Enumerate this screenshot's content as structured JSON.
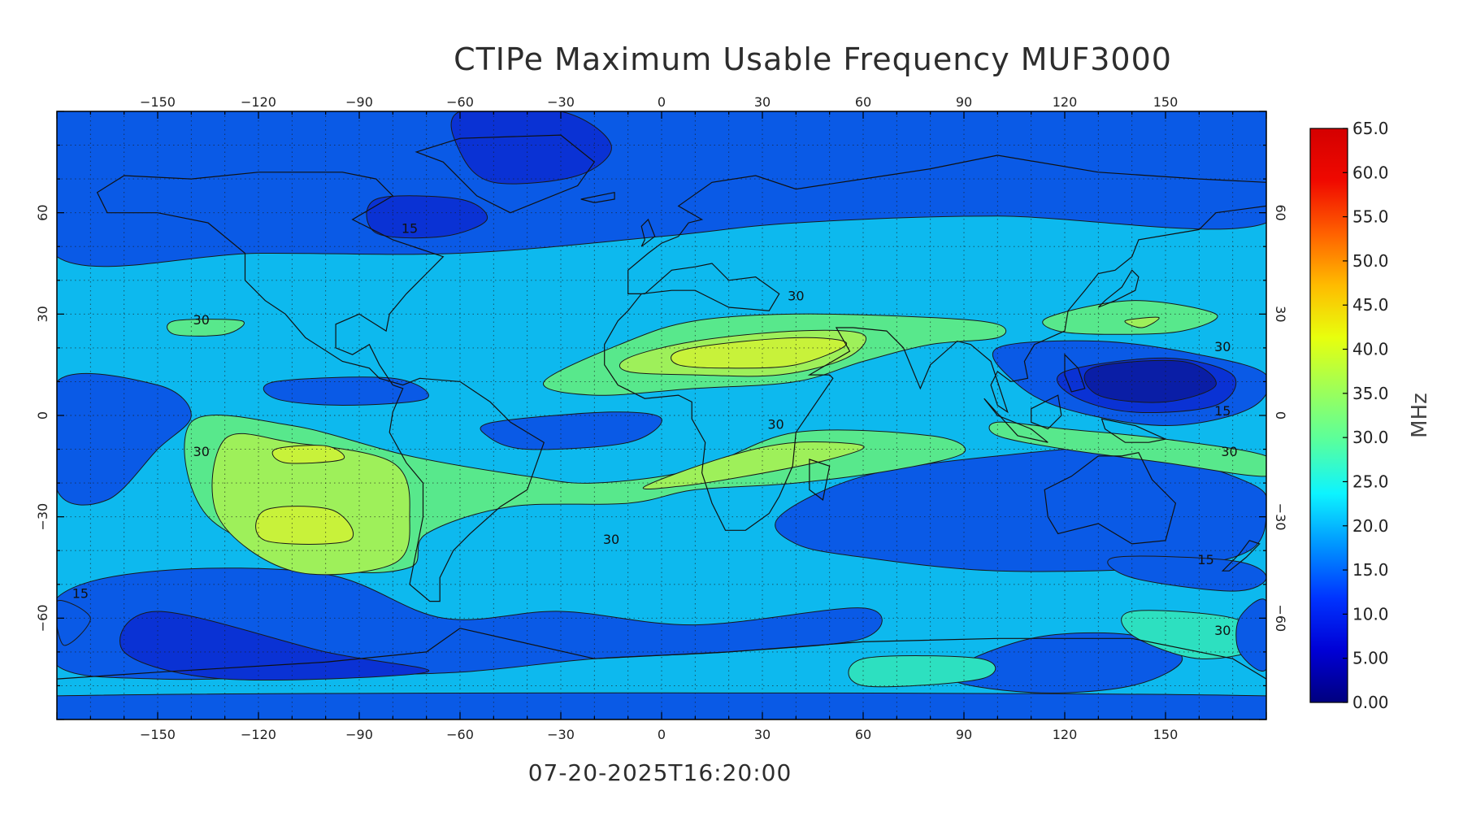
{
  "title": "CTIPe Maximum Usable Frequency MUF3000",
  "timestamp": "07-20-2025T16:20:00",
  "map": {
    "lon_range": [
      -180,
      180
    ],
    "lat_range": [
      -90,
      90
    ],
    "lon_ticks": [
      -150,
      -120,
      -90,
      -60,
      -30,
      0,
      30,
      60,
      90,
      120,
      150
    ],
    "lat_ticks": [
      60,
      30,
      0,
      -30,
      -60
    ],
    "lon_tick_labels": [
      "−150",
      "−120",
      "−90",
      "−60",
      "−30",
      "0",
      "30",
      "60",
      "90",
      "120",
      "150"
    ],
    "lat_tick_labels": [
      "60",
      "30",
      "0",
      "−30",
      "−60"
    ],
    "grid": true,
    "background_color": "#0db9ee"
  },
  "colorbar": {
    "unit": "MHz",
    "min": 0,
    "max": 65,
    "labels": [
      "65.0",
      "60.0",
      "55.0",
      "50.0",
      "45.0",
      "40.0",
      "35.0",
      "30.0",
      "25.0",
      "20.0",
      "15.0",
      "10.0",
      "5.00",
      "0.00"
    ],
    "gradient": [
      "#00007f",
      "#0000d6",
      "#0034ff",
      "#0094ff",
      "#0df4ff",
      "#58ff9e",
      "#9eff58",
      "#e8ff0d",
      "#ffbb00",
      "#ff6000",
      "#f00900",
      "#d40000"
    ]
  },
  "contour_labels": [
    {
      "text": "30",
      "lon": -137,
      "lat": 27
    },
    {
      "text": "30",
      "lon": 40,
      "lat": 34
    },
    {
      "text": "30",
      "lon": 167,
      "lat": 19
    },
    {
      "text": "15",
      "lon": -75,
      "lat": 54
    },
    {
      "text": "15",
      "lon": 167,
      "lat": 0
    },
    {
      "text": "30",
      "lon": 34,
      "lat": -4
    },
    {
      "text": "30",
      "lon": -137,
      "lat": -12
    },
    {
      "text": "30",
      "lon": -15,
      "lat": -38
    },
    {
      "text": "15",
      "lon": 162,
      "lat": -44
    },
    {
      "text": "30",
      "lon": 169,
      "lat": -12
    },
    {
      "text": "30",
      "lon": 167,
      "lat": -65
    },
    {
      "text": "15",
      "lon": -173,
      "lat": -54
    }
  ],
  "contours": [
    {
      "level": 15,
      "color": "#0a5ae6",
      "points": [
        [
          -180,
          90
        ],
        [
          180,
          90
        ],
        [
          180,
          57
        ],
        [
          100,
          59
        ],
        [
          40,
          57
        ],
        [
          0,
          53
        ],
        [
          -60,
          48
        ],
        [
          -120,
          48
        ],
        [
          -180,
          47
        ]
      ]
    },
    {
      "level": 10,
      "color": "#0a32d4",
      "points": [
        [
          -60,
          90
        ],
        [
          -30,
          90
        ],
        [
          -15,
          80
        ],
        [
          -25,
          71
        ],
        [
          -50,
          69
        ],
        [
          -60,
          78
        ]
      ]
    },
    {
      "level": 10,
      "color": "#0a32d4",
      "points": [
        [
          -85,
          64
        ],
        [
          -60,
          64
        ],
        [
          -52,
          58
        ],
        [
          -65,
          53
        ],
        [
          -85,
          54
        ]
      ]
    },
    {
      "level": 15,
      "color": "#0a5ae6",
      "points": [
        [
          -180,
          -54
        ],
        [
          -150,
          -46
        ],
        [
          -100,
          -47
        ],
        [
          -65,
          -60
        ],
        [
          -30,
          -58
        ],
        [
          10,
          -62
        ],
        [
          60,
          -57
        ],
        [
          60,
          -66
        ],
        [
          20,
          -70
        ],
        [
          -20,
          -72
        ],
        [
          -60,
          -76
        ],
        [
          -100,
          -77
        ],
        [
          -150,
          -78
        ],
        [
          -180,
          -74
        ]
      ]
    },
    {
      "level": 10,
      "color": "#0a32d4",
      "points": [
        [
          -150,
          -58
        ],
        [
          -100,
          -70
        ],
        [
          -70,
          -76
        ],
        [
          -130,
          -78
        ],
        [
          -160,
          -70
        ]
      ]
    },
    {
      "level": 15,
      "color": "#0a5ae6",
      "points": [
        [
          -180,
          -83
        ],
        [
          180,
          -83
        ],
        [
          180,
          -90
        ],
        [
          -180,
          -90
        ]
      ]
    },
    {
      "level": 15,
      "color": "#0a5ae6",
      "points": [
        [
          85,
          -77
        ],
        [
          110,
          -66
        ],
        [
          140,
          -65
        ],
        [
          155,
          -72
        ],
        [
          140,
          -80
        ],
        [
          110,
          -82
        ]
      ]
    },
    {
      "level": 15,
      "color": "#0a5ae6",
      "points": [
        [
          35,
          -30
        ],
        [
          60,
          -18
        ],
        [
          100,
          -12
        ],
        [
          140,
          -10
        ],
        [
          175,
          -20
        ],
        [
          180,
          -28
        ],
        [
          175,
          -40
        ],
        [
          150,
          -45
        ],
        [
          100,
          -46
        ],
        [
          60,
          -42
        ],
        [
          40,
          -38
        ]
      ]
    },
    {
      "level": 15,
      "color": "#0a5ae6",
      "points": [
        [
          100,
          20
        ],
        [
          130,
          22
        ],
        [
          160,
          18
        ],
        [
          180,
          12
        ],
        [
          175,
          2
        ],
        [
          150,
          -3
        ],
        [
          120,
          2
        ],
        [
          105,
          10
        ]
      ]
    },
    {
      "level": 10,
      "color": "#0a32d4",
      "points": [
        [
          120,
          13
        ],
        [
          150,
          17
        ],
        [
          170,
          12
        ],
        [
          165,
          3
        ],
        [
          140,
          1
        ],
        [
          122,
          6
        ]
      ]
    },
    {
      "level": 5,
      "color": "#0a1ea6",
      "points": [
        [
          128,
          14
        ],
        [
          155,
          16
        ],
        [
          165,
          9
        ],
        [
          150,
          4
        ],
        [
          130,
          6
        ]
      ]
    },
    {
      "level": 15,
      "color": "#0a5ae6",
      "points": [
        [
          -180,
          10
        ],
        [
          -150,
          9
        ],
        [
          -140,
          0
        ],
        [
          -150,
          -10
        ],
        [
          -165,
          -25
        ],
        [
          -180,
          -22
        ]
      ]
    },
    {
      "level": 15,
      "color": "#0a5ae6",
      "points": [
        [
          -115,
          10
        ],
        [
          -80,
          11
        ],
        [
          -70,
          5
        ],
        0,
        [
          -95,
          3
        ],
        [
          -115,
          5
        ]
      ]
    },
    {
      "level": 15,
      "color": "#0a5ae6",
      "points": [
        [
          -50,
          -2
        ],
        [
          -15,
          1
        ],
        [
          0,
          -1
        ],
        [
          -10,
          -8
        ],
        [
          -40,
          -10
        ],
        [
          -52,
          -6
        ]
      ]
    },
    {
      "level": 35,
      "color": "#58e88c",
      "points": [
        [
          -140,
          -2
        ],
        [
          -110,
          -3
        ],
        [
          -75,
          -12
        ],
        [
          -40,
          -18
        ],
        [
          -20,
          -20
        ],
        [
          10,
          -16
        ],
        [
          40,
          -5
        ],
        [
          80,
          -6
        ],
        [
          90,
          -11
        ],
        [
          70,
          -16
        ],
        [
          40,
          -20
        ],
        [
          10,
          -22
        ],
        [
          -10,
          -26
        ],
        [
          -45,
          -27
        ],
        [
          -70,
          -35
        ],
        [
          -75,
          -45
        ],
        [
          -100,
          -45
        ],
        [
          -135,
          -30
        ]
      ]
    },
    {
      "level": 40,
      "color": "#9ef05a",
      "points": [
        [
          -130,
          -7
        ],
        [
          -110,
          -8
        ],
        [
          -80,
          -14
        ],
        [
          -75,
          -30
        ],
        [
          -80,
          -44
        ],
        [
          -110,
          -46
        ],
        [
          -132,
          -30
        ]
      ]
    },
    {
      "level": 45,
      "color": "#c8f23a",
      "points": [
        [
          -115,
          -10
        ],
        [
          -100,
          -9
        ],
        [
          -95,
          -13
        ],
        [
          -112,
          -14
        ]
      ]
    },
    {
      "level": 45,
      "color": "#c8f23a",
      "points": [
        [
          -118,
          -28
        ],
        [
          -98,
          -28
        ],
        [
          -93,
          -37
        ],
        0,
        [
          -118,
          -37
        ]
      ]
    },
    {
      "level": 40,
      "color": "#9ef05a",
      "points": [
        [
          -5,
          -21
        ],
        [
          20,
          -12
        ],
        [
          40,
          -8
        ],
        [
          60,
          -9
        ],
        [
          50,
          -13
        ],
        [
          25,
          -18
        ],
        [
          5,
          -21
        ]
      ]
    },
    {
      "level": 35,
      "color": "#58e88c",
      "points": [
        [
          -35,
          10
        ],
        [
          -10,
          22
        ],
        [
          10,
          28
        ],
        [
          40,
          30
        ],
        [
          80,
          29
        ],
        [
          100,
          27
        ],
        [
          100,
          23
        ],
        [
          80,
          21
        ],
        [
          60,
          16
        ],
        [
          40,
          10
        ],
        [
          10,
          8
        ],
        [
          -20,
          6
        ]
      ]
    },
    {
      "level": 40,
      "color": "#9ef05a",
      "points": [
        [
          -10,
          17
        ],
        [
          10,
          22
        ],
        [
          40,
          25
        ],
        [
          60,
          24
        ],
        [
          55,
          17
        ],
        [
          35,
          12
        ],
        [
          10,
          12
        ],
        [
          -10,
          13
        ]
      ]
    },
    {
      "level": 45,
      "color": "#c8f23a",
      "points": [
        [
          5,
          19
        ],
        [
          25,
          22
        ],
        [
          45,
          23
        ],
        [
          55,
          21
        ],
        [
          40,
          15
        ],
        [
          20,
          14
        ],
        [
          5,
          15
        ]
      ]
    },
    {
      "level": 35,
      "color": "#58e88c",
      "points": [
        [
          115,
          29
        ],
        [
          140,
          34
        ],
        [
          165,
          30
        ],
        [
          155,
          25
        ],
        [
          135,
          24
        ],
        [
          118,
          25
        ]
      ]
    },
    {
      "level": 40,
      "color": "#9ef05a",
      "points": [
        [
          138,
          28
        ],
        [
          148,
          29
        ],
        [
          143,
          26
        ]
      ]
    },
    {
      "level": 35,
      "color": "#58e88c",
      "points": [
        [
          -145,
          28
        ],
        [
          -125,
          28
        ],
        [
          -130,
          24
        ],
        [
          -145,
          24
        ]
      ]
    },
    {
      "level": 35,
      "color": "#58e88c",
      "points": [
        [
          100,
          -2
        ],
        [
          120,
          -4
        ],
        [
          150,
          -7
        ],
        [
          180,
          -12
        ],
        [
          180,
          -18
        ],
        [
          150,
          -14
        ],
        [
          120,
          -10
        ],
        [
          100,
          -6
        ]
      ]
    },
    {
      "level": 15,
      "color": "#0a5ae6",
      "points": [
        [
          135,
          -42
        ],
        [
          170,
          -43
        ],
        [
          180,
          -48
        ],
        [
          170,
          -52
        ],
        [
          140,
          -48
        ]
      ]
    },
    {
      "level": 30,
      "color": "#2de0c0",
      "points": [
        [
          60,
          -72
        ],
        [
          95,
          -72
        ],
        [
          95,
          -78
        ],
        [
          60,
          -80
        ]
      ]
    },
    {
      "level": 30,
      "color": "#2de0c0",
      "points": [
        [
          140,
          -58
        ],
        [
          170,
          -60
        ],
        [
          180,
          -68
        ],
        [
          160,
          -72
        ],
        [
          140,
          -65
        ]
      ]
    },
    {
      "level": 15,
      "color": "#0a5ae6",
      "points": [
        [
          172,
          -60
        ],
        [
          180,
          -55
        ],
        [
          180,
          -75
        ],
        [
          172,
          -70
        ]
      ]
    },
    {
      "level": 15,
      "color": "#0a5ae6",
      "points": [
        [
          -180,
          -55
        ],
        [
          -170,
          -60
        ],
        [
          -178,
          -68
        ]
      ]
    }
  ]
}
